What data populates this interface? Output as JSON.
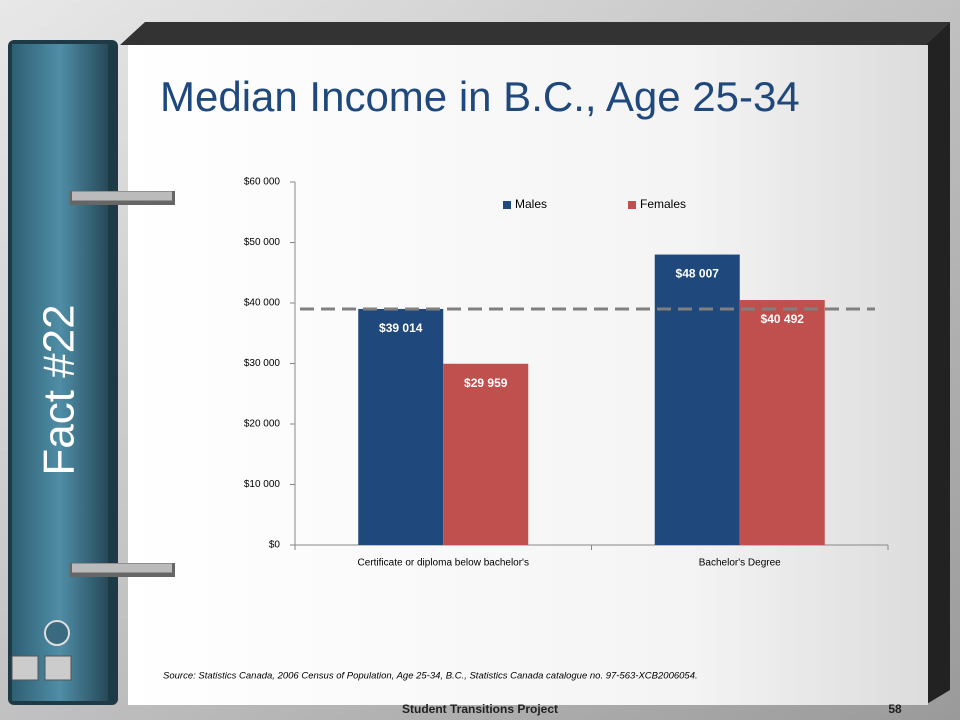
{
  "fact_label": "Fact #22",
  "source": "Source:  Statistics Canada, 2006 Census of Population, Age 25-34, B.C., Statistics Canada catalogue no. 97-563-XCB2006054.",
  "footer": "Student Transitions Project",
  "page_number": "58",
  "chart_data": {
    "type": "bar",
    "title": "Median Income in B.C., Age 25-34",
    "categories": [
      "Certificate or diploma below bachelor's",
      "Bachelor's Degree"
    ],
    "series": [
      {
        "name": "Males",
        "color": "#1f497d",
        "values": [
          39014,
          48007
        ],
        "value_labels": [
          "$39 014",
          "$48 007"
        ]
      },
      {
        "name": "Females",
        "color": "#c0504d",
        "values": [
          29959,
          40492
        ],
        "value_labels": [
          "$29 959",
          "$40 492"
        ]
      }
    ],
    "ylim": [
      0,
      60000
    ],
    "yticks": [
      {
        "value": 0,
        "label": "$0"
      },
      {
        "value": 10000,
        "label": "$10 000"
      },
      {
        "value": 20000,
        "label": "$20 000"
      },
      {
        "value": 30000,
        "label": "$30 000"
      },
      {
        "value": 40000,
        "label": "$40 000"
      },
      {
        "value": 50000,
        "label": "$50 000"
      },
      {
        "value": 60000,
        "label": "$60 000"
      }
    ],
    "legend": "top"
  }
}
